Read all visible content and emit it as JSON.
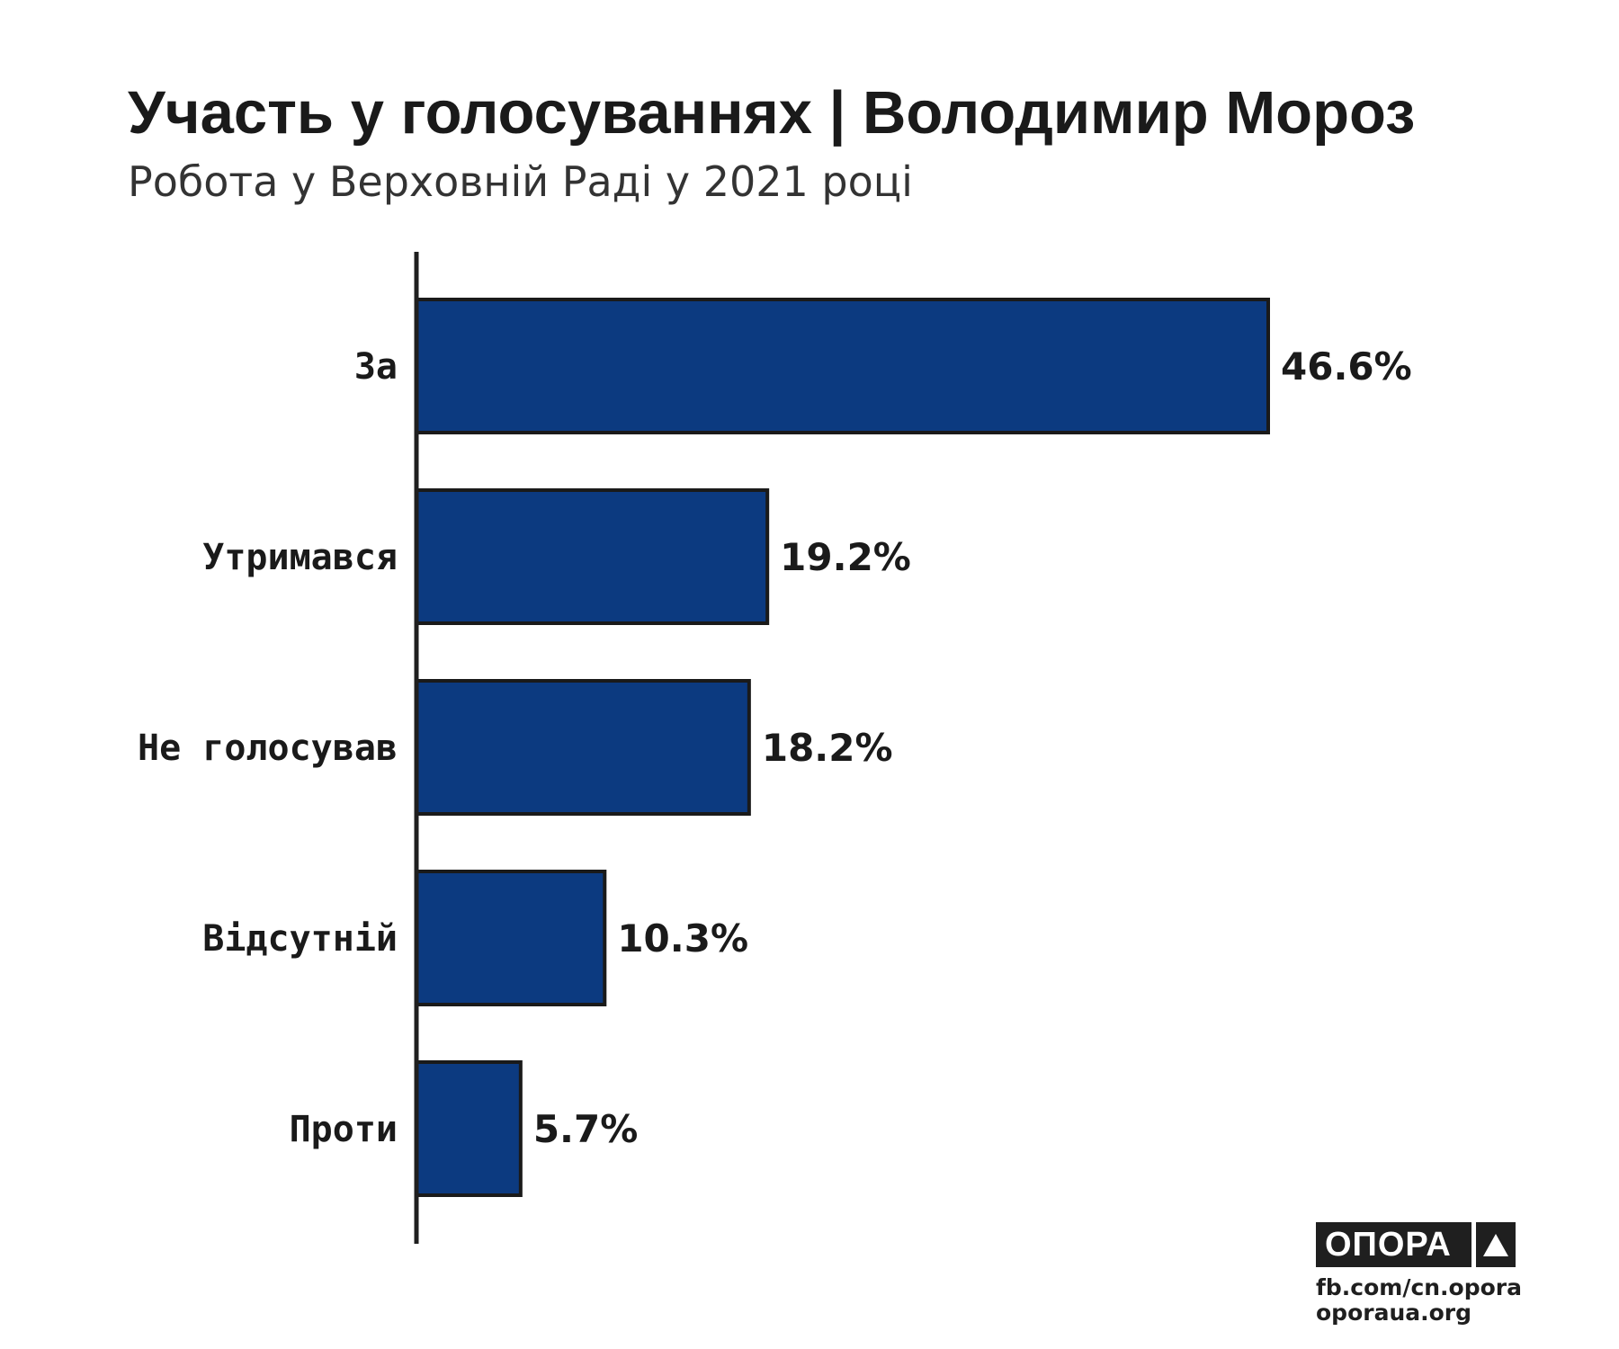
{
  "title": "Участь у голосуваннях | Володимир Мороз",
  "subtitle": "Робота у Верховній Раді у 2021 році",
  "chart_data": {
    "type": "bar",
    "orientation": "horizontal",
    "categories": [
      "За",
      "Утримався",
      "Не голосував",
      "Відсутній",
      "Проти"
    ],
    "values": [
      46.6,
      19.2,
      18.2,
      10.3,
      5.7
    ],
    "value_labels": [
      "46.6%",
      "19.2%",
      "18.2%",
      "10.3%",
      "5.7%"
    ],
    "unit": "%",
    "xlim": [
      0,
      50
    ],
    "grid": false,
    "bar_color": "#0c3a80",
    "bar_outline_color": "#1a1a1a"
  },
  "branding": {
    "logo_text": "ОПОРА",
    "logo_icon": "triangle-icon",
    "source_lines": [
      "fb.com/cn.opora",
      "oporaua.org"
    ]
  }
}
